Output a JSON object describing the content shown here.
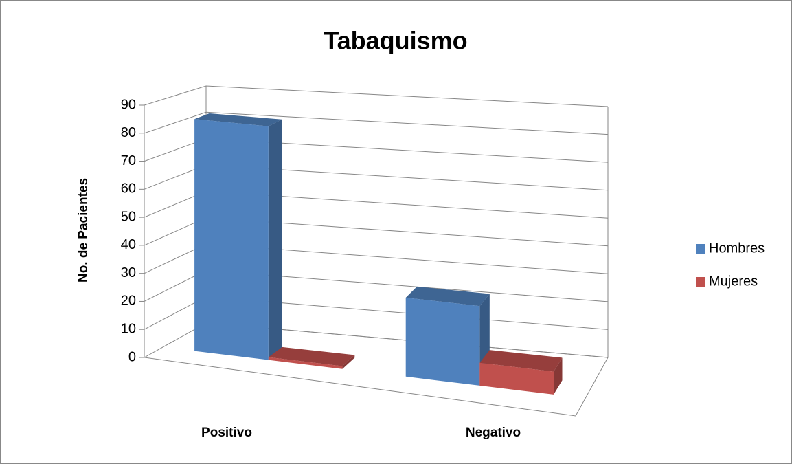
{
  "chart_data": {
    "type": "bar3d",
    "title": "Tabaquismo",
    "y_label": "No. de Pacientes",
    "categories": [
      "Positivo",
      "Negativo"
    ],
    "series": [
      {
        "name": "Hombres",
        "color": "#4f81bd",
        "values": [
          84,
          28
        ]
      },
      {
        "name": "Mujeres",
        "color": "#c0504d",
        "values": [
          1,
          8
        ]
      }
    ],
    "ylim": [
      0,
      90
    ],
    "yticks": [
      0,
      10,
      20,
      30,
      40,
      50,
      60,
      70,
      80,
      90
    ],
    "grid": true,
    "legend": "right"
  }
}
